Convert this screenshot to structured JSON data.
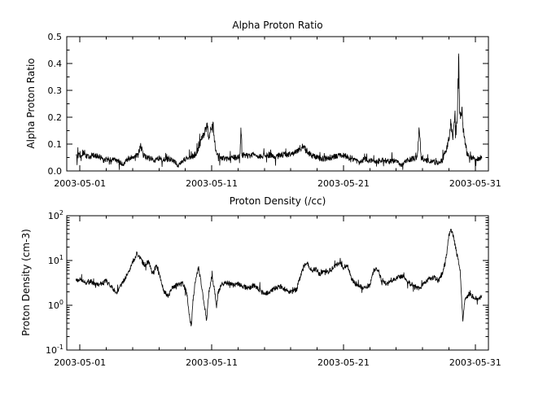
{
  "figure": {
    "background": "#ffffff",
    "line_color": "#000000",
    "axis_color": "#000000"
  },
  "chart_data": [
    {
      "type": "line",
      "title": "Alpha Proton Ratio",
      "ylabel": "Alpha Proton Ratio",
      "xlabel": "",
      "yscale": "linear",
      "ylim": [
        0.0,
        0.5
      ],
      "ytick_values": [
        0.0,
        0.1,
        0.2,
        0.3,
        0.4,
        0.5
      ],
      "ytick_labels": [
        "0.0",
        "0.1",
        "0.2",
        "0.3",
        "0.4",
        "0.5"
      ],
      "yminor_step": 0.05,
      "xlim": [
        0,
        32
      ],
      "xtick_values": [
        1,
        11,
        21,
        31
      ],
      "xtick_labels": [
        "2003-05-01",
        "2003-05-11",
        "2003-05-21",
        "2003-05-31"
      ],
      "xminor_step": 2,
      "grid": false,
      "legend": "none",
      "samples": 1500,
      "noise": {
        "amp": 0.011,
        "spike_prob": 0.05,
        "spike_mult": 3,
        "seed": 20030501
      },
      "series": [
        {
          "name": "alpha-proton-ratio",
          "keypoints_day_value": [
            [
              0.7,
              0.05
            ],
            [
              1.0,
              0.06
            ],
            [
              1.3,
              0.07
            ],
            [
              1.6,
              0.05
            ],
            [
              2.0,
              0.06
            ],
            [
              2.4,
              0.055
            ],
            [
              2.8,
              0.04
            ],
            [
              3.2,
              0.045
            ],
            [
              3.6,
              0.04
            ],
            [
              4.0,
              0.035
            ],
            [
              4.3,
              0.02
            ],
            [
              4.6,
              0.045
            ],
            [
              5.0,
              0.05
            ],
            [
              5.4,
              0.06
            ],
            [
              5.6,
              0.095
            ],
            [
              5.8,
              0.06
            ],
            [
              6.2,
              0.05
            ],
            [
              6.6,
              0.04
            ],
            [
              7.0,
              0.045
            ],
            [
              7.4,
              0.04
            ],
            [
              7.8,
              0.045
            ],
            [
              8.2,
              0.035
            ],
            [
              8.5,
              0.02
            ],
            [
              8.8,
              0.04
            ],
            [
              9.2,
              0.05
            ],
            [
              9.6,
              0.055
            ],
            [
              9.9,
              0.07
            ],
            [
              10.1,
              0.1
            ],
            [
              10.3,
              0.13
            ],
            [
              10.5,
              0.15
            ],
            [
              10.65,
              0.17
            ],
            [
              10.8,
              0.12
            ],
            [
              10.95,
              0.16
            ],
            [
              11.1,
              0.17
            ],
            [
              11.25,
              0.1
            ],
            [
              11.4,
              0.06
            ],
            [
              11.7,
              0.05
            ],
            [
              12.0,
              0.045
            ],
            [
              12.5,
              0.05
            ],
            [
              13.0,
              0.05
            ],
            [
              13.15,
              0.06
            ],
            [
              13.22,
              0.165
            ],
            [
              13.3,
              0.06
            ],
            [
              13.7,
              0.055
            ],
            [
              14.2,
              0.06
            ],
            [
              14.7,
              0.055
            ],
            [
              15.2,
              0.06
            ],
            [
              15.7,
              0.055
            ],
            [
              16.2,
              0.06
            ],
            [
              16.7,
              0.06
            ],
            [
              17.2,
              0.065
            ],
            [
              17.6,
              0.08
            ],
            [
              17.9,
              0.09
            ],
            [
              18.2,
              0.075
            ],
            [
              18.5,
              0.06
            ],
            [
              19.0,
              0.05
            ],
            [
              19.5,
              0.045
            ],
            [
              20.0,
              0.05
            ],
            [
              20.5,
              0.055
            ],
            [
              21.0,
              0.06
            ],
            [
              21.4,
              0.05
            ],
            [
              21.8,
              0.045
            ],
            [
              22.2,
              0.03
            ],
            [
              22.6,
              0.045
            ],
            [
              23.0,
              0.04
            ],
            [
              23.5,
              0.035
            ],
            [
              24.0,
              0.04
            ],
            [
              24.5,
              0.035
            ],
            [
              25.0,
              0.04
            ],
            [
              25.4,
              0.02
            ],
            [
              25.8,
              0.04
            ],
            [
              26.2,
              0.045
            ],
            [
              26.6,
              0.05
            ],
            [
              26.75,
              0.165
            ],
            [
              26.9,
              0.05
            ],
            [
              27.3,
              0.04
            ],
            [
              27.7,
              0.035
            ],
            [
              28.1,
              0.03
            ],
            [
              28.5,
              0.04
            ],
            [
              28.8,
              0.08
            ],
            [
              29.0,
              0.12
            ],
            [
              29.15,
              0.18
            ],
            [
              29.3,
              0.12
            ],
            [
              29.45,
              0.2
            ],
            [
              29.55,
              0.15
            ],
            [
              29.65,
              0.22
            ],
            [
              29.74,
              0.46
            ],
            [
              29.82,
              0.2
            ],
            [
              29.95,
              0.23
            ],
            [
              30.1,
              0.15
            ],
            [
              30.25,
              0.1
            ],
            [
              30.4,
              0.06
            ],
            [
              30.7,
              0.05
            ],
            [
              31.0,
              0.045
            ],
            [
              31.5,
              0.05
            ]
          ]
        }
      ]
    },
    {
      "type": "line",
      "title": "Proton Density (/cc)",
      "ylabel": "Proton Density (cm-3)",
      "xlabel": "",
      "yscale": "log",
      "ylim": [
        0.1,
        100
      ],
      "ytick_values": [
        0.1,
        1,
        10,
        100
      ],
      "ytick_base": "10",
      "ytick_exponents": [
        -1,
        0,
        1,
        2
      ],
      "xlim": [
        0,
        32
      ],
      "xtick_values": [
        1,
        11,
        21,
        31
      ],
      "xtick_labels": [
        "2003-05-01",
        "2003-05-11",
        "2003-05-21",
        "2003-05-31"
      ],
      "xminor_step": 2,
      "grid": false,
      "legend": "none",
      "samples": 1500,
      "noise": {
        "log_amp": 0.055,
        "spike_prob": 0.05,
        "spike_mult": 2.5,
        "seed": 77
      },
      "series": [
        {
          "name": "proton-density",
          "keypoints_day_value": [
            [
              0.7,
              3.5
            ],
            [
              1.0,
              4.0
            ],
            [
              1.4,
              3.2
            ],
            [
              1.8,
              3.5
            ],
            [
              2.2,
              2.8
            ],
            [
              2.6,
              3.0
            ],
            [
              3.0,
              3.5
            ],
            [
              3.4,
              2.5
            ],
            [
              3.8,
              1.9
            ],
            [
              4.2,
              3.0
            ],
            [
              4.6,
              5.0
            ],
            [
              5.0,
              9.0
            ],
            [
              5.3,
              14.0
            ],
            [
              5.6,
              11.0
            ],
            [
              5.9,
              8.0
            ],
            [
              6.2,
              9.5
            ],
            [
              6.5,
              5.0
            ],
            [
              6.8,
              7.5
            ],
            [
              7.1,
              4.0
            ],
            [
              7.4,
              2.0
            ],
            [
              7.7,
              1.6
            ],
            [
              8.0,
              2.5
            ],
            [
              8.4,
              2.8
            ],
            [
              8.8,
              3.0
            ],
            [
              9.1,
              2.0
            ],
            [
              9.3,
              0.6
            ],
            [
              9.45,
              0.35
            ],
            [
              9.6,
              1.5
            ],
            [
              9.8,
              4.0
            ],
            [
              10.0,
              7.0
            ],
            [
              10.2,
              3.0
            ],
            [
              10.45,
              1.0
            ],
            [
              10.6,
              0.45
            ],
            [
              10.8,
              2.0
            ],
            [
              11.0,
              4.5
            ],
            [
              11.2,
              2.5
            ],
            [
              11.35,
              0.9
            ],
            [
              11.5,
              2.0
            ],
            [
              11.8,
              3.0
            ],
            [
              12.2,
              3.2
            ],
            [
              12.6,
              2.8
            ],
            [
              13.0,
              3.0
            ],
            [
              13.4,
              2.6
            ],
            [
              13.8,
              2.4
            ],
            [
              14.2,
              2.8
            ],
            [
              14.6,
              2.2
            ],
            [
              15.0,
              1.8
            ],
            [
              15.4,
              2.0
            ],
            [
              15.8,
              2.4
            ],
            [
              16.2,
              2.6
            ],
            [
              16.6,
              2.2
            ],
            [
              17.0,
              1.9
            ],
            [
              17.4,
              2.2
            ],
            [
              17.7,
              4.0
            ],
            [
              18.0,
              7.5
            ],
            [
              18.3,
              8.5
            ],
            [
              18.6,
              6.0
            ],
            [
              18.9,
              6.5
            ],
            [
              19.2,
              5.0
            ],
            [
              19.5,
              6.0
            ],
            [
              19.8,
              5.5
            ],
            [
              20.1,
              6.5
            ],
            [
              20.4,
              7.5
            ],
            [
              20.7,
              9.0
            ],
            [
              21.0,
              7.0
            ],
            [
              21.3,
              8.0
            ],
            [
              21.6,
              4.0
            ],
            [
              21.9,
              3.0
            ],
            [
              22.3,
              2.6
            ],
            [
              22.7,
              2.4
            ],
            [
              23.0,
              2.8
            ],
            [
              23.3,
              6.0
            ],
            [
              23.6,
              6.5
            ],
            [
              23.9,
              3.5
            ],
            [
              24.3,
              3.0
            ],
            [
              24.7,
              3.5
            ],
            [
              25.1,
              4.2
            ],
            [
              25.5,
              4.5
            ],
            [
              25.9,
              3.2
            ],
            [
              26.3,
              2.8
            ],
            [
              26.7,
              2.4
            ],
            [
              27.1,
              3.0
            ],
            [
              27.5,
              3.8
            ],
            [
              27.9,
              4.2
            ],
            [
              28.2,
              3.5
            ],
            [
              28.5,
              5.0
            ],
            [
              28.8,
              12.0
            ],
            [
              29.0,
              35.0
            ],
            [
              29.15,
              50.0
            ],
            [
              29.3,
              40.0
            ],
            [
              29.5,
              20.0
            ],
            [
              29.7,
              10.0
            ],
            [
              29.85,
              6.0
            ],
            [
              29.95,
              2.0
            ],
            [
              30.05,
              0.45
            ],
            [
              30.2,
              1.2
            ],
            [
              30.5,
              1.8
            ],
            [
              30.8,
              1.6
            ],
            [
              31.1,
              1.4
            ],
            [
              31.5,
              1.6
            ]
          ]
        }
      ]
    }
  ]
}
